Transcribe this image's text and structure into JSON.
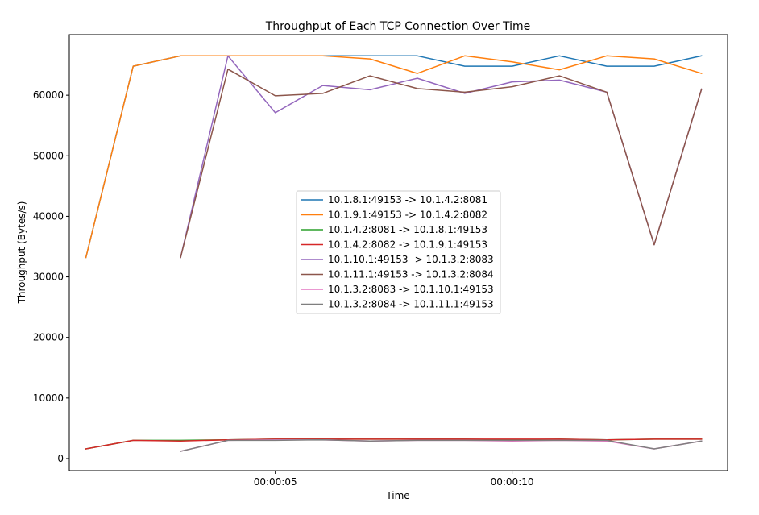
{
  "chart_data": {
    "type": "line",
    "title": "Throughput of Each TCP Connection Over Time",
    "xlabel": "Time",
    "ylabel": "Throughput (Bytes/s)",
    "xlim": [
      0.65,
      14.55
    ],
    "ylim": [
      -2000,
      70000
    ],
    "x_ticks": [
      {
        "value": 5,
        "label": "00:00:05"
      },
      {
        "value": 10,
        "label": "00:00:10"
      }
    ],
    "y_ticks": [
      0,
      10000,
      20000,
      30000,
      40000,
      50000,
      60000
    ],
    "grid": false,
    "legend_position": "center",
    "series": [
      {
        "name": "10.1.8.1:49153 -> 10.1.4.2:8081",
        "color": "#1f77b4",
        "x": [
          1,
          2,
          3,
          4,
          5,
          6,
          7,
          8,
          9,
          10,
          11,
          12,
          13,
          14
        ],
        "y": [
          33200,
          64800,
          66500,
          66500,
          66500,
          66500,
          66500,
          66500,
          64800,
          64800,
          66500,
          64800,
          64800,
          66500
        ]
      },
      {
        "name": "10.1.9.1:49153 -> 10.1.4.2:8082",
        "color": "#ff7f0e",
        "x": [
          1,
          2,
          3,
          4,
          5,
          6,
          7,
          8,
          9,
          10,
          11,
          12,
          13,
          14
        ],
        "y": [
          33200,
          64800,
          66500,
          66500,
          66500,
          66500,
          66000,
          63600,
          66500,
          65500,
          64200,
          66500,
          66000,
          63600
        ]
      },
      {
        "name": "10.1.4.2:8081 -> 10.1.8.1:49153",
        "color": "#2ca02c",
        "x": [
          1,
          2,
          3,
          4,
          5,
          6,
          7,
          8,
          9,
          10,
          11,
          12,
          13,
          14
        ],
        "y": [
          1600,
          3000,
          3000,
          3100,
          3200,
          3200,
          3200,
          3200,
          3200,
          3100,
          3200,
          3100,
          3200,
          3200
        ]
      },
      {
        "name": "10.1.4.2:8082 -> 10.1.9.1:49153",
        "color": "#d62728",
        "x": [
          1,
          2,
          3,
          4,
          5,
          6,
          7,
          8,
          9,
          10,
          11,
          12,
          13,
          14
        ],
        "y": [
          1600,
          3000,
          2900,
          3100,
          3200,
          3200,
          3200,
          3200,
          3200,
          3200,
          3200,
          3100,
          3200,
          3200
        ]
      },
      {
        "name": "10.1.10.1:49153 -> 10.1.3.2:8083",
        "color": "#9467bd",
        "x": [
          3,
          4,
          5,
          6,
          7,
          8,
          9,
          10,
          11,
          12,
          13,
          14
        ],
        "y": [
          33200,
          66500,
          57100,
          61600,
          60900,
          62800,
          60300,
          62200,
          62500,
          60500,
          35300,
          61000
        ]
      },
      {
        "name": "10.1.11.1:49153 -> 10.1.3.2:8084",
        "color": "#8c564b",
        "x": [
          3,
          4,
          5,
          6,
          7,
          8,
          9,
          10,
          11,
          12,
          13,
          14
        ],
        "y": [
          33200,
          64300,
          59900,
          60300,
          63200,
          61100,
          60500,
          61400,
          63200,
          60500,
          35300,
          61000
        ]
      },
      {
        "name": "10.1.3.2:8083 -> 10.1.10.1:49153",
        "color": "#e377c2",
        "x": [
          3,
          4,
          5,
          6,
          7,
          8,
          9,
          10,
          11,
          12,
          13,
          14
        ],
        "y": [
          1200,
          3000,
          3100,
          3100,
          2900,
          3000,
          3000,
          2900,
          3000,
          2900,
          1600,
          2900
        ]
      },
      {
        "name": "10.1.3.2:8084 -> 10.1.11.1:49153",
        "color": "#7f7f7f",
        "x": [
          3,
          4,
          5,
          6,
          7,
          8,
          9,
          10,
          11,
          12,
          13,
          14
        ],
        "y": [
          1200,
          3000,
          3000,
          3100,
          2900,
          3000,
          3000,
          3000,
          3000,
          3000,
          1600,
          2900
        ]
      }
    ]
  }
}
